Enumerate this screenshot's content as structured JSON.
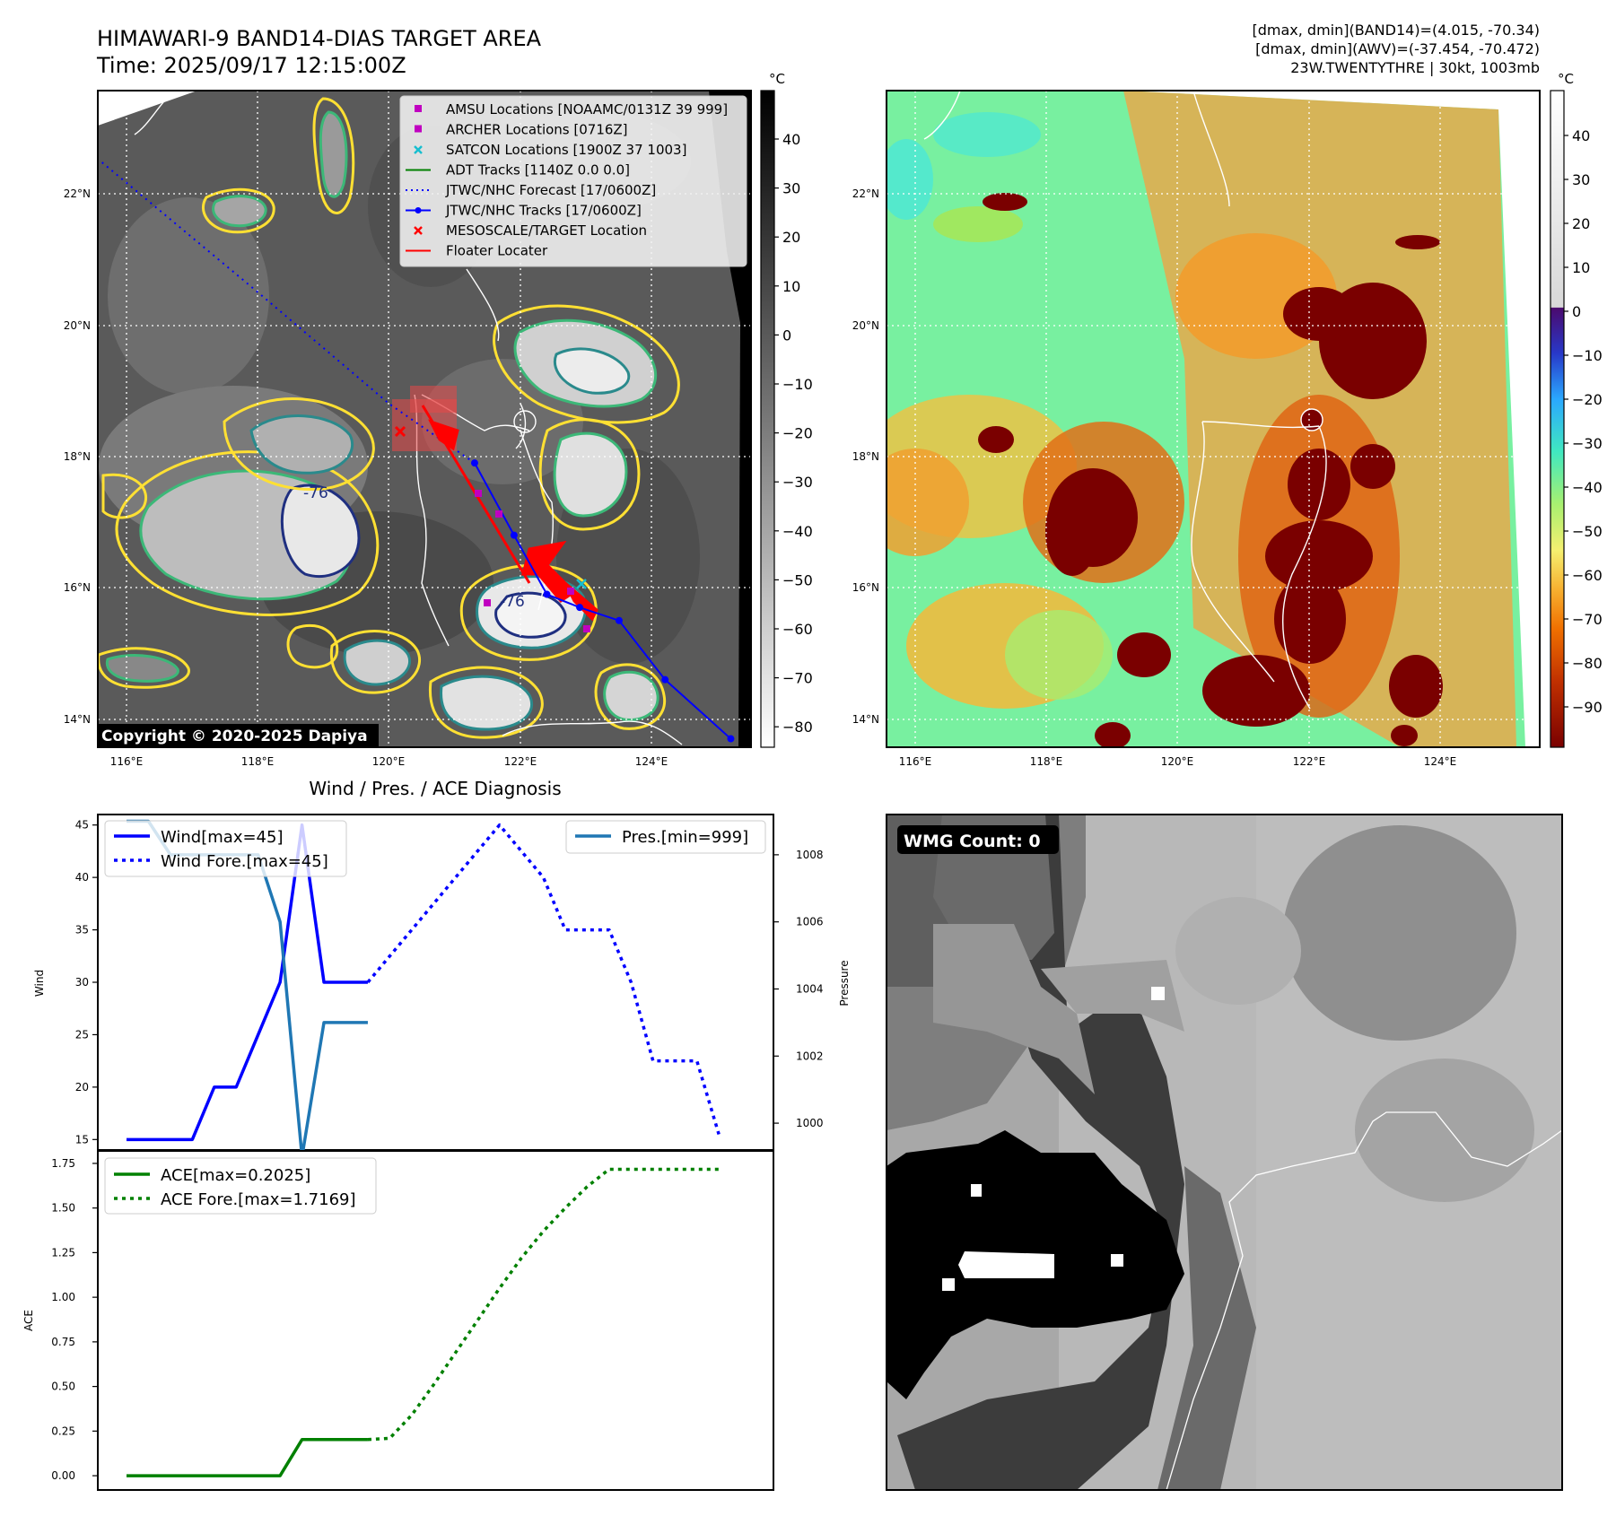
{
  "header": {
    "title_line1": "HIMAWARI-9 BAND14-DIAS TARGET AREA",
    "title_line2": "Time: 2025/09/17 12:15:00Z",
    "info_line1": "[dmax, dmin](BAND14)=(4.015, -70.34)",
    "info_line2": "[dmax, dmin](AWV)=(-37.454, -70.472)",
    "info_line3": "23W.TWENTYTHRE | 30kt, 1003mb"
  },
  "maps": {
    "lat_labels": [
      "22°N",
      "20°N",
      "18°N",
      "16°N",
      "14°N"
    ],
    "lon_labels": [
      "116°E",
      "118°E",
      "120°E",
      "122°E",
      "124°E"
    ],
    "copyright": "Copyright © 2020-2025 Dapiya",
    "contour_labels": [
      "-76",
      "-76"
    ],
    "legend": [
      {
        "label": "AMSU Locations [NOAAMC/0131Z 39 999]",
        "marker": "square",
        "color": "#c000c0"
      },
      {
        "label": "ARCHER Locations [0716Z]",
        "marker": "square",
        "color": "#c000c0"
      },
      {
        "label": "SATCON Locations [1900Z 37 1003]",
        "marker": "x",
        "color": "#17becf"
      },
      {
        "label": "ADT Tracks [1140Z 0.0 0.0]",
        "marker": "line",
        "color": "#008000"
      },
      {
        "label": "JTWC/NHC Forecast [17/0600Z]",
        "marker": "dotted",
        "color": "#0000ff"
      },
      {
        "label": "JTWC/NHC Tracks [17/0600Z]",
        "marker": "line-dot",
        "color": "#0000ff"
      },
      {
        "label": "MESOSCALE/TARGET Location",
        "marker": "x",
        "color": "#ff0000"
      },
      {
        "label": "Floater Locater",
        "marker": "line",
        "color": "#ff0000"
      }
    ],
    "ir_colorbar": {
      "unit": "°C",
      "ticks": [
        "40",
        "30",
        "20",
        "10",
        "0",
        "−10",
        "−20",
        "−30",
        "−40",
        "−50",
        "−60",
        "−70",
        "−80"
      ]
    },
    "awv_colorbar": {
      "unit": "°C",
      "ticks": [
        "40",
        "30",
        "20",
        "10",
        "0",
        "−10",
        "−20",
        "−30",
        "−40",
        "−50",
        "−60",
        "−70",
        "−80",
        "−90"
      ]
    },
    "track_points": [
      [
        125.2,
        13.7
      ],
      [
        124.2,
        14.6
      ],
      [
        123.5,
        15.5
      ],
      [
        122.9,
        15.7
      ],
      [
        122.4,
        15.9
      ],
      [
        121.9,
        16.8
      ],
      [
        121.3,
        17.9
      ]
    ],
    "forecast_points": [
      [
        120.0,
        18.8
      ],
      [
        118.0,
        20.5
      ],
      [
        115.6,
        22.5
      ]
    ],
    "target_location": [
      120.25,
      18.35
    ],
    "colors": {
      "ir_contour_yellow": "#ffe033",
      "ir_contour_green": "#3cb878",
      "ir_contour_teal": "#2a8a8c",
      "ir_contour_navy": "#1f2f80"
    }
  },
  "wmg": {
    "label": "WMG Count: 0"
  },
  "chart_data": [
    {
      "type": "line",
      "title": "Wind / Pres. / ACE Diagnosis",
      "ylabel": "Wind",
      "ylabel_right": "Pressure",
      "x": [
        0,
        1,
        2,
        3,
        4,
        5,
        6,
        7,
        8,
        9,
        10,
        11,
        12,
        13,
        14,
        15,
        16,
        17,
        18,
        19,
        20,
        21,
        22,
        23,
        24,
        25,
        26,
        27
      ],
      "ylim": [
        14,
        46
      ],
      "yticks": [
        "45",
        "40",
        "35",
        "30",
        "25",
        "20",
        "15"
      ],
      "ylim_right": [
        999.2,
        1009.2
      ],
      "yticks_right": [
        "1008",
        "1006",
        "1004",
        "1002",
        "1000"
      ],
      "series": [
        {
          "name": "Wind[max=45]",
          "axis": "left",
          "style": "solid",
          "color": "#0000ff",
          "x": [
            0,
            1,
            2,
            3,
            4,
            5,
            6,
            7,
            8,
            9,
            10,
            11
          ],
          "values": [
            15,
            15,
            15,
            15,
            20,
            20,
            25,
            30,
            45,
            30,
            30,
            30
          ]
        },
        {
          "name": "Wind Fore.[max=45]",
          "axis": "left",
          "style": "dotted",
          "color": "#0000ff",
          "x": [
            11,
            12,
            13,
            14,
            15,
            16,
            17,
            18,
            19,
            20,
            21,
            22,
            23,
            24,
            25,
            26,
            27
          ],
          "values": [
            30,
            32.5,
            35,
            37.5,
            40,
            42.5,
            45,
            42.5,
            40,
            35,
            35,
            35,
            30,
            22.5,
            22.5,
            22.5,
            15.5
          ]
        },
        {
          "name": "Pres.[min=999]",
          "axis": "right",
          "style": "solid",
          "color": "#1f77b4",
          "x": [
            0,
            1,
            2,
            3,
            4,
            5,
            6,
            7,
            8,
            9,
            10,
            11
          ],
          "values": [
            1009,
            1009,
            1008,
            1008,
            1008,
            1008,
            1008,
            1006,
            999,
            1003,
            1003,
            1003
          ]
        }
      ]
    },
    {
      "type": "line",
      "ylabel": "ACE",
      "x": [
        0,
        1,
        2,
        3,
        4,
        5,
        6,
        7,
        8,
        9,
        10,
        11,
        12,
        13,
        14,
        15,
        16,
        17,
        18,
        19,
        20,
        21,
        22,
        23,
        24,
        25,
        26,
        27
      ],
      "ylim": [
        -0.08,
        1.82
      ],
      "yticks": [
        "1.75",
        "1.50",
        "1.25",
        "1.00",
        "0.75",
        "0.50",
        "0.25",
        "0.00"
      ],
      "series": [
        {
          "name": "ACE[max=0.2025]",
          "style": "solid",
          "color": "#008000",
          "x": [
            0,
            1,
            2,
            3,
            4,
            5,
            6,
            7,
            8,
            9,
            10,
            11
          ],
          "values": [
            0,
            0,
            0,
            0,
            0,
            0,
            0,
            0,
            0.2025,
            0.2025,
            0.2025,
            0.2025
          ]
        },
        {
          "name": "ACE Fore.[max=1.7169]",
          "style": "dotted",
          "color": "#008000",
          "x": [
            11,
            12,
            13,
            14,
            15,
            16,
            17,
            18,
            19,
            20,
            21,
            22,
            23,
            24,
            25,
            26,
            27
          ],
          "values": [
            0.2025,
            0.21,
            0.34,
            0.51,
            0.69,
            0.87,
            1.05,
            1.22,
            1.37,
            1.5,
            1.62,
            1.7169,
            1.7169,
            1.7169,
            1.7169,
            1.7169,
            1.7169
          ]
        }
      ]
    }
  ]
}
